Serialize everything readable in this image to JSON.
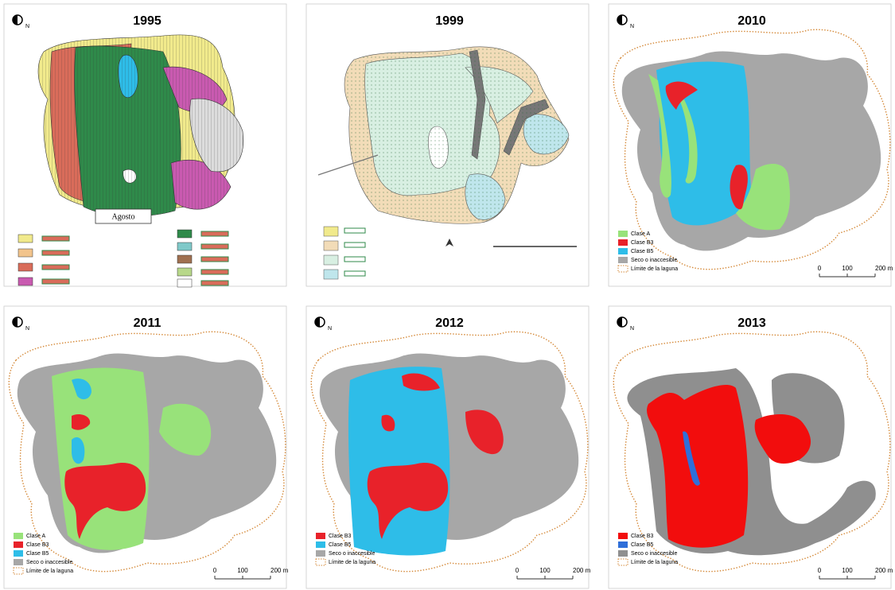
{
  "panels": [
    {
      "title": "1995",
      "north": "N",
      "annotation": "Agosto"
    },
    {
      "title": "1999"
    },
    {
      "title": "2010",
      "north": "N",
      "legend": [
        {
          "label": "Clase A",
          "color": "#98e27a"
        },
        {
          "label": "Clase B3",
          "color": "#e8222a"
        },
        {
          "label": "Clase B5",
          "color": "#2ebde8"
        },
        {
          "label": "Seco o inaccesible",
          "color": "#a7a7a7"
        },
        {
          "label": "Límite de la laguna",
          "color": "#d58a3a"
        }
      ],
      "scale": [
        "0",
        "100",
        "200 m"
      ]
    },
    {
      "title": "2011",
      "north": "N",
      "legend": [
        {
          "label": "Clase A",
          "color": "#98e27a"
        },
        {
          "label": "Clase B3",
          "color": "#e8222a"
        },
        {
          "label": "Clase B5",
          "color": "#2ebde8"
        },
        {
          "label": "Seco o inaccesible",
          "color": "#a7a7a7"
        },
        {
          "label": "Límite de la laguna",
          "color": "#d58a3a"
        }
      ],
      "scale": [
        "0",
        "100",
        "200 m"
      ]
    },
    {
      "title": "2012",
      "north": "N",
      "legend": [
        {
          "label": "Clase B3",
          "color": "#e8222a"
        },
        {
          "label": "Clase B5",
          "color": "#2ebde8"
        },
        {
          "label": "Seco o inaccesible",
          "color": "#a7a7a7"
        },
        {
          "label": "Límite de la laguna",
          "color": "#d58a3a"
        }
      ],
      "scale": [
        "0",
        "100",
        "200 m"
      ]
    },
    {
      "title": "2013",
      "north": "N",
      "legend": [
        {
          "label": "Clase B3",
          "color": "#f20d0d"
        },
        {
          "label": "Clase B5",
          "color": "#2f6fd9"
        },
        {
          "label": "Seco o inaccesible",
          "color": "#8f8f8f"
        },
        {
          "label": "Límite de la laguna",
          "color": "#d58a3a"
        }
      ],
      "scale": [
        "0",
        "100",
        "200 m"
      ]
    }
  ]
}
